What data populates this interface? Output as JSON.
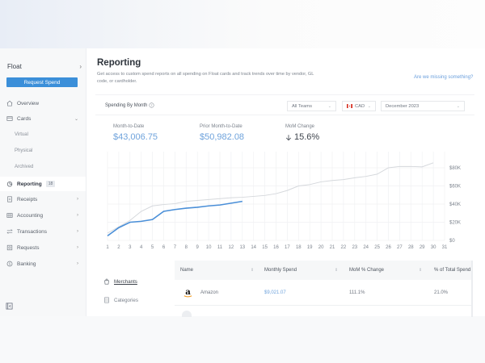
{
  "sidebar": {
    "brand": "Float",
    "request_spend": "Request Spend",
    "items": [
      {
        "label": "Overview",
        "icon": "home-icon"
      },
      {
        "label": "Cards",
        "icon": "card-icon",
        "expanded": true
      },
      {
        "label": "Reporting",
        "icon": "pie-chart-icon",
        "badge": "18",
        "active": true
      },
      {
        "label": "Receipts",
        "icon": "receipt-icon"
      },
      {
        "label": "Accounting",
        "icon": "grid-icon"
      },
      {
        "label": "Transactions",
        "icon": "arrows-icon"
      },
      {
        "label": "Requests",
        "icon": "request-icon"
      },
      {
        "label": "Banking",
        "icon": "dollar-circle-icon"
      }
    ],
    "card_sub_items": [
      "Virtual",
      "Physical",
      "Archived"
    ]
  },
  "page": {
    "title": "Reporting",
    "description": "Get access to custom spend reports on all spending on Float cards and track trends over time by vendor, GL code, or cardholder.",
    "missing_link": "Are we missing something?"
  },
  "spending_card": {
    "title": "Spending By Month",
    "filters": {
      "team": "All Teams",
      "currency": "CAD",
      "month": "December 2023"
    },
    "metrics": [
      {
        "label": "Month-to-Date",
        "value": "$43,006.75"
      },
      {
        "label": "Prior Month-to-Date",
        "value": "$50,982.08"
      },
      {
        "label": "MoM Change",
        "value": "15.6%",
        "direction": "down"
      }
    ]
  },
  "chart_data": {
    "type": "line",
    "title": "Spending By Month",
    "x": [
      1,
      2,
      3,
      4,
      5,
      6,
      7,
      8,
      9,
      10,
      11,
      12,
      13,
      14,
      15,
      16,
      17,
      18,
      19,
      20,
      21,
      22,
      23,
      24,
      25,
      26,
      27,
      28,
      29,
      30,
      31
    ],
    "x_tick_labels": [
      "1",
      "2",
      "3",
      "4",
      "5",
      "6",
      "7",
      "8",
      "9",
      "10",
      "11",
      "12",
      "13",
      "14",
      "15",
      "16",
      "17",
      "18",
      "19",
      "20",
      "21",
      "22",
      "23",
      "24",
      "25",
      "26",
      "27",
      "28",
      "29",
      "30",
      "31"
    ],
    "y_tick_labels": [
      "$0",
      "$20K",
      "$40K",
      "$60K",
      "$80K"
    ],
    "ylim": [
      0,
      90000
    ],
    "grid": true,
    "y_axis_position": "right",
    "series": [
      {
        "name": "Current Month",
        "color": "#4a8fd8",
        "values": [
          5000,
          14000,
          20000,
          21000,
          23000,
          32000,
          34000,
          35500,
          36500,
          38000,
          39000,
          41000,
          43000
        ]
      },
      {
        "name": "Prior Month",
        "color": "#d5d8dc",
        "values": [
          8000,
          15000,
          22000,
          32000,
          38000,
          39500,
          40500,
          43000,
          44000,
          45000,
          46000,
          47000,
          47500,
          48500,
          49500,
          51500,
          55000,
          60000,
          61500,
          64500,
          66000,
          67000,
          69000,
          70500,
          73000,
          80000,
          81500,
          81500,
          81000,
          85500
        ]
      }
    ]
  },
  "breakdown": {
    "tabs": [
      {
        "label": "Merchants",
        "active": true
      },
      {
        "label": "Categories",
        "active": false
      }
    ],
    "columns": [
      "Name",
      "Monthly Spend",
      "MoM % Change",
      "% of Total Spend"
    ],
    "rows": [
      {
        "name": "Amazon",
        "monthly_spend": "$9,021.07",
        "mom_change": "111.1%",
        "pct_total": "21.0%"
      }
    ]
  }
}
